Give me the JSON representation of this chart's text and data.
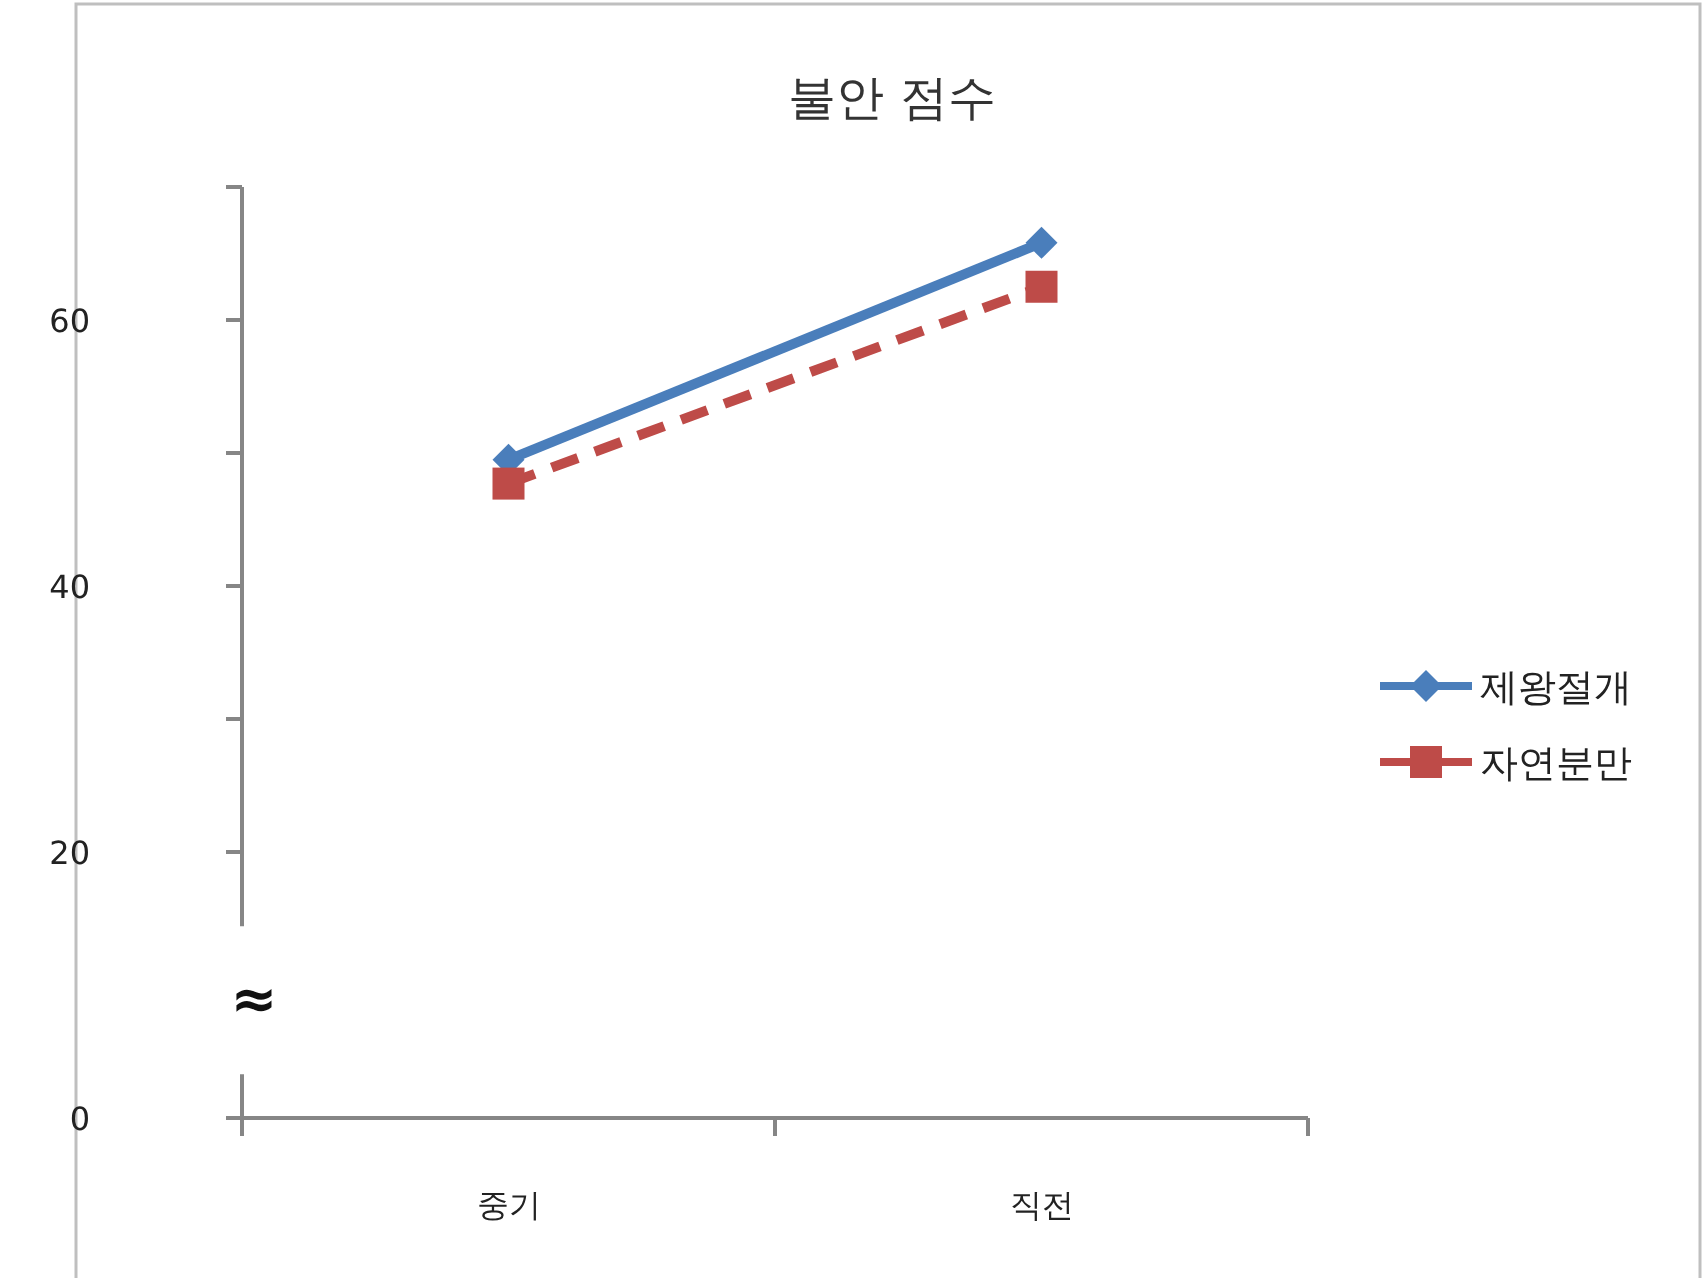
{
  "chart_data": {
    "type": "line",
    "title": "불안 점수",
    "categories": [
      "중기",
      "직전"
    ],
    "series": [
      {
        "name": "제왕절개",
        "color": "#4a7ebb",
        "values": [
          49.5,
          65.8
        ],
        "marker": "diamond",
        "line_style": "solid"
      },
      {
        "name": "자연분만",
        "color": "#be4b48",
        "values": [
          47.7,
          62.5
        ],
        "marker": "square",
        "line_style": "dashed"
      }
    ],
    "ylim": [
      0,
      70
    ],
    "yticks": [
      0,
      20,
      {
        "value": 30,
        "label": null
      },
      40,
      {
        "value": 50,
        "label": null
      },
      60,
      {
        "value": 70,
        "label": null
      }
    ],
    "legend": "right",
    "grid": false,
    "annotations": [
      "≈"
    ]
  }
}
